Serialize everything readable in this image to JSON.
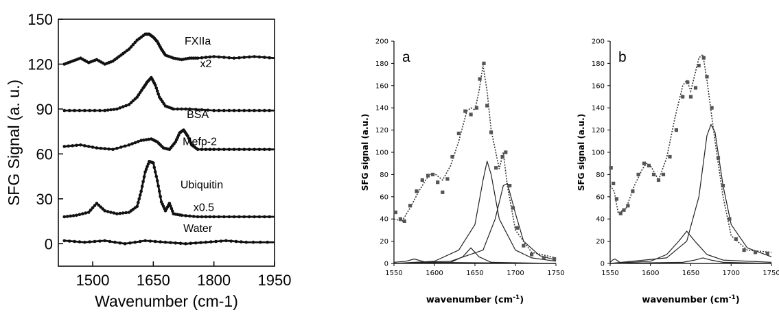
{
  "chart_data": [
    {
      "type": "line",
      "xlabel": "Wavenumber (cm-1)",
      "ylabel": "SFG Signal (a. u.)",
      "xlim": [
        1415,
        1950
      ],
      "ylim": [
        -15,
        150
      ],
      "xticks": [
        1500,
        1650,
        1800,
        1950
      ],
      "yticks": [
        0,
        30,
        60,
        90,
        120,
        150
      ],
      "series": [
        {
          "name": "FXIIa",
          "name2": "x2",
          "label_at": [
            1760,
            133
          ],
          "label2_at": [
            1780,
            118
          ],
          "x": [
            1430,
            1450,
            1470,
            1490,
            1510,
            1530,
            1550,
            1570,
            1590,
            1610,
            1630,
            1640,
            1650,
            1660,
            1670,
            1680,
            1700,
            1720,
            1740,
            1760,
            1800,
            1850,
            1900,
            1950
          ],
          "y": [
            120,
            122,
            124,
            121,
            123,
            120,
            122,
            126,
            130,
            136,
            140,
            140,
            138,
            135,
            130,
            126,
            124,
            123,
            124,
            124,
            125,
            124,
            125,
            124
          ]
        },
        {
          "name": "BSA",
          "label_at": [
            1760,
            84
          ],
          "x": [
            1430,
            1480,
            1530,
            1560,
            1590,
            1610,
            1625,
            1635,
            1645,
            1655,
            1665,
            1680,
            1700,
            1740,
            1800,
            1850,
            1900,
            1950
          ],
          "y": [
            89,
            89,
            89,
            90,
            93,
            98,
            104,
            108,
            111,
            106,
            98,
            92,
            90,
            90,
            89,
            89,
            89,
            89
          ]
        },
        {
          "name": "Mefp-2",
          "label_at": [
            1765,
            66
          ],
          "x": [
            1430,
            1470,
            1510,
            1550,
            1590,
            1620,
            1645,
            1660,
            1675,
            1690,
            1705,
            1715,
            1725,
            1735,
            1745,
            1760,
            1800,
            1850,
            1900,
            1950
          ],
          "y": [
            65,
            66,
            64,
            63,
            66,
            69,
            70,
            68,
            64,
            63,
            68,
            74,
            76,
            72,
            66,
            63,
            63,
            63,
            63,
            63
          ],
          "y_comment": ""
        },
        {
          "name": "Ubiquitin",
          "name2": "x0.5",
          "label_at": [
            1770,
            37
          ],
          "label2_at": [
            1775,
            22
          ],
          "x": [
            1430,
            1460,
            1490,
            1510,
            1530,
            1560,
            1590,
            1610,
            1620,
            1630,
            1640,
            1650,
            1660,
            1670,
            1680,
            1690,
            1700,
            1720,
            1760,
            1800,
            1850,
            1900,
            1950
          ],
          "y": [
            18,
            19,
            21,
            27,
            22,
            20,
            21,
            25,
            35,
            48,
            55,
            54,
            42,
            28,
            22,
            27,
            20,
            19,
            18,
            18,
            18,
            18,
            18
          ],
          "y_comment": ""
        },
        {
          "name": "Water",
          "label_at": [
            1760,
            8
          ],
          "x": [
            1430,
            1480,
            1530,
            1580,
            1630,
            1680,
            1730,
            1780,
            1830,
            1880,
            1950
          ],
          "y": [
            2,
            1,
            2,
            0,
            2,
            1,
            0,
            1,
            2,
            1,
            1
          ]
        }
      ]
    },
    {
      "type": "line",
      "panel_label": "a",
      "xlabel": "wavenumber (cm",
      "xlabel_sup": "-1",
      "xlabel_end": ")",
      "ylabel": "SFG signal (a.u.)",
      "xlim": [
        1550,
        1750
      ],
      "ylim": [
        0,
        200
      ],
      "xticks": [
        1550,
        1600,
        1650,
        1700,
        1750
      ],
      "yticks": [
        0,
        20,
        40,
        60,
        80,
        100,
        120,
        140,
        160,
        180,
        200
      ],
      "series": [
        {
          "style": "fit",
          "x": [
            1550,
            1560,
            1570,
            1580,
            1590,
            1595,
            1600,
            1605,
            1610,
            1620,
            1630,
            1640,
            1645,
            1650,
            1655,
            1660,
            1665,
            1670,
            1680,
            1685,
            1690,
            1700,
            1720,
            1750
          ],
          "y": [
            40,
            38,
            50,
            64,
            76,
            80,
            81,
            78,
            75,
            88,
            110,
            137,
            140,
            138,
            155,
            178,
            155,
            120,
            85,
            100,
            70,
            30,
            10,
            5
          ]
        },
        {
          "style": "peak",
          "x": [
            1550,
            1600,
            1630,
            1650,
            1660,
            1665,
            1670,
            1680,
            1700,
            1720,
            1750
          ],
          "y": [
            0,
            2,
            12,
            35,
            75,
            92,
            80,
            40,
            12,
            5,
            2
          ]
        },
        {
          "style": "peak",
          "x": [
            1550,
            1620,
            1660,
            1675,
            1685,
            1690,
            1700,
            1710,
            1730,
            1750
          ],
          "y": [
            0,
            2,
            12,
            40,
            70,
            72,
            45,
            20,
            7,
            3
          ]
        },
        {
          "style": "peak",
          "x": [
            1550,
            1620,
            1635,
            1645,
            1655,
            1670,
            1750
          ],
          "y": [
            0,
            1,
            6,
            14,
            6,
            1,
            0
          ]
        },
        {
          "style": "peak",
          "x": [
            1550,
            1565,
            1575,
            1590,
            1750
          ],
          "y": [
            1,
            2,
            4,
            1,
            0
          ]
        },
        {
          "style": "points",
          "x": [
            1552,
            1558,
            1563,
            1570,
            1578,
            1585,
            1592,
            1598,
            1604,
            1610,
            1616,
            1622,
            1630,
            1638,
            1645,
            1652,
            1656,
            1661,
            1665,
            1670,
            1676,
            1684,
            1688,
            1693,
            1697,
            1702,
            1710,
            1720,
            1735,
            1748
          ],
          "y": [
            46,
            40,
            38,
            52,
            65,
            75,
            79,
            80,
            73,
            64,
            76,
            96,
            117,
            137,
            134,
            140,
            166,
            180,
            142,
            118,
            86,
            96,
            100,
            70,
            50,
            32,
            16,
            8,
            5,
            4
          ]
        }
      ]
    },
    {
      "type": "line",
      "panel_label": "b",
      "xlabel": "wavenumber (cm",
      "xlabel_sup": "-1",
      "xlabel_end": ")",
      "ylabel": "SFG signal (a.u.)",
      "xlim": [
        1550,
        1750
      ],
      "ylim": [
        0,
        200
      ],
      "xticks": [
        1550,
        1600,
        1650,
        1700,
        1750
      ],
      "yticks": [
        0,
        20,
        40,
        60,
        80,
        100,
        120,
        140,
        160,
        180,
        200
      ],
      "series": [
        {
          "style": "fit",
          "x": [
            1550,
            1555,
            1560,
            1570,
            1580,
            1590,
            1595,
            1600,
            1610,
            1620,
            1630,
            1640,
            1645,
            1650,
            1655,
            1660,
            1665,
            1670,
            1680,
            1690,
            1700,
            1720,
            1750
          ],
          "y": [
            70,
            65,
            45,
            50,
            70,
            85,
            90,
            88,
            75,
            95,
            130,
            160,
            165,
            155,
            170,
            185,
            188,
            165,
            110,
            60,
            25,
            12,
            10
          ]
        },
        {
          "style": "peak",
          "x": [
            1550,
            1620,
            1645,
            1660,
            1670,
            1675,
            1680,
            1690,
            1700,
            1720,
            1750
          ],
          "y": [
            0,
            5,
            20,
            60,
            115,
            125,
            118,
            70,
            35,
            14,
            6
          ]
        },
        {
          "style": "peak",
          "x": [
            1550,
            1600,
            1620,
            1635,
            1645,
            1655,
            1670,
            1690,
            1750
          ],
          "y": [
            0,
            2,
            8,
            20,
            29,
            20,
            8,
            3,
            1
          ]
        },
        {
          "style": "peak",
          "x": [
            1550,
            1640,
            1655,
            1665,
            1675,
            1690,
            1750
          ],
          "y": [
            0,
            1,
            3,
            5,
            3,
            1,
            0
          ]
        },
        {
          "style": "peak",
          "x": [
            1550,
            1553,
            1556,
            1562,
            1570,
            1750
          ],
          "y": [
            1,
            3,
            4,
            1,
            0,
            0
          ]
        },
        {
          "style": "points",
          "x": [
            1551,
            1554,
            1558,
            1563,
            1567,
            1572,
            1578,
            1585,
            1592,
            1598,
            1604,
            1610,
            1616,
            1624,
            1632,
            1640,
            1646,
            1650,
            1656,
            1660,
            1666,
            1670,
            1676,
            1684,
            1690,
            1698,
            1706,
            1716,
            1730,
            1745
          ],
          "y": [
            86,
            72,
            58,
            45,
            48,
            52,
            65,
            80,
            90,
            88,
            80,
            75,
            80,
            96,
            120,
            150,
            163,
            150,
            158,
            178,
            185,
            168,
            140,
            95,
            70,
            40,
            22,
            12,
            10,
            9
          ]
        }
      ]
    }
  ]
}
